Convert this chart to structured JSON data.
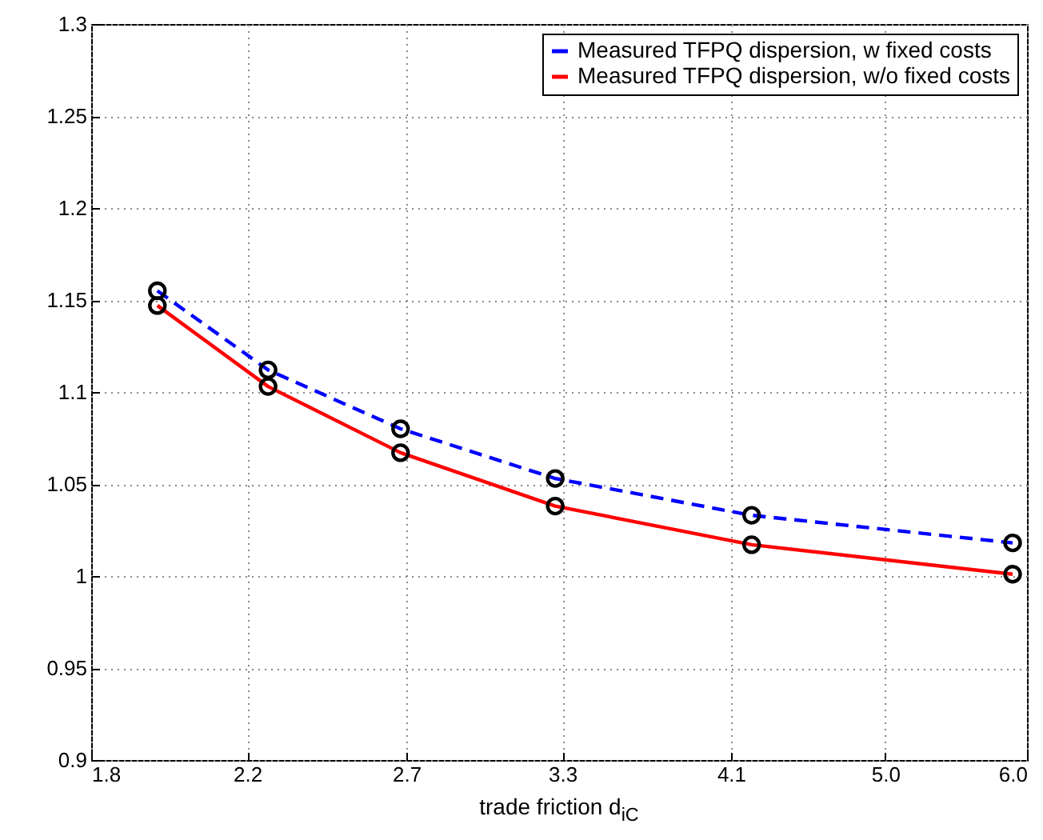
{
  "chart_data": {
    "type": "line",
    "xlabel": "trade friction d$_{iC}$",
    "log": "x",
    "xlim": [
      1.8,
      6.0
    ],
    "xticks": [
      1.8,
      2.2,
      2.7,
      3.3,
      4.1,
      {
        "value": 5,
        "label": "5.0"
      },
      {
        "value": 6,
        "label": "6.0"
      }
    ],
    "ylim": [
      0.9,
      1.3
    ],
    "yticks": [
      0.9,
      0.95,
      1,
      1.05,
      1.1,
      1.15,
      1.2,
      1.25,
      1.3
    ],
    "grid": true,
    "legend": "top right",
    "marker": "circle",
    "series": [
      {
        "name": "Measured TFPQ dispersion, w fixed costs",
        "color": "#0000ff",
        "line_style": "dashed",
        "x": [
          1.96,
          2.26,
          2.68,
          3.27,
          4.21,
          5.89
        ],
        "values": [
          1.155,
          1.112,
          1.08,
          1.053,
          1.033,
          1.018
        ]
      },
      {
        "name": "Measured TFPQ dispersion, w/o fixed costs",
        "color": "#ff0000",
        "line_style": "solid",
        "x": [
          1.96,
          2.26,
          2.68,
          3.27,
          4.21,
          5.89
        ],
        "values": [
          1.147,
          1.103,
          1.067,
          1.038,
          1.017,
          1.001
        ]
      }
    ]
  }
}
